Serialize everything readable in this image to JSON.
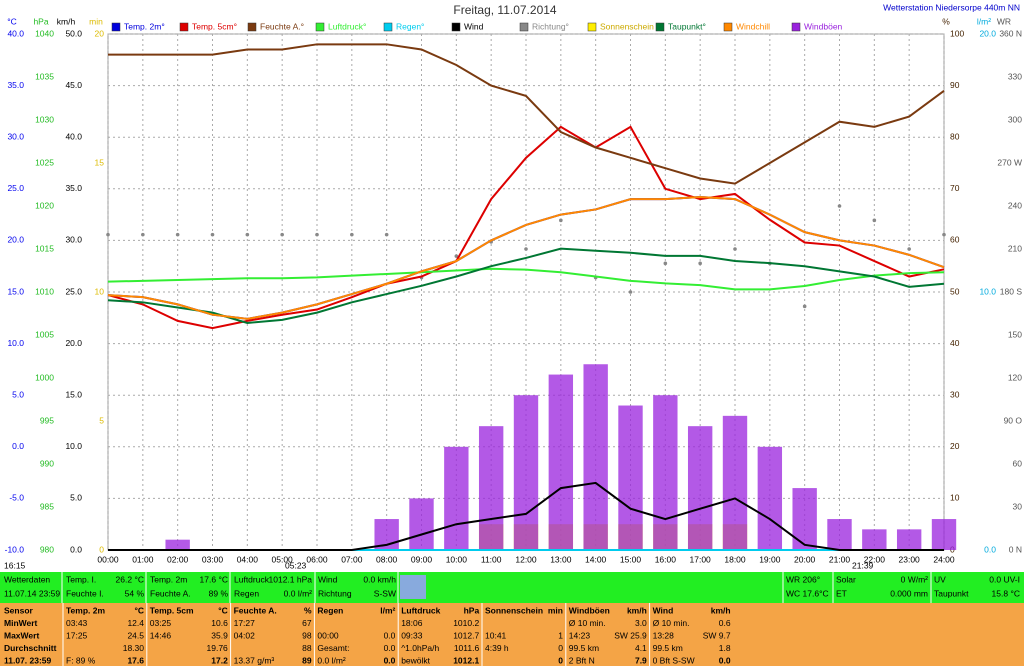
{
  "chart_data": {
    "type": "line",
    "title": "Freitag, 11.07.2014",
    "station": "Wetterstation Niedersorpe 440m NN",
    "markers": [
      "16:15",
      "05:23",
      "21:39"
    ],
    "xlim": [
      0,
      24
    ],
    "xticks": [
      {
        "value": 0,
        "label": "00:00"
      },
      {
        "value": 1,
        "label": "01:00"
      },
      {
        "value": 2,
        "label": "02:00"
      },
      {
        "value": 3,
        "label": "03:00"
      },
      {
        "value": 4,
        "label": "04:00"
      },
      {
        "value": 5,
        "label": "05:00"
      },
      {
        "value": 6,
        "label": "06:00"
      },
      {
        "value": 7,
        "label": "07:00"
      },
      {
        "value": 8,
        "label": "08:00"
      },
      {
        "value": 9,
        "label": "09:00"
      },
      {
        "value": 10,
        "label": "10:00"
      },
      {
        "value": 11,
        "label": "11:00"
      },
      {
        "value": 12,
        "label": "12:00"
      },
      {
        "value": 13,
        "label": "13:00"
      },
      {
        "value": 14,
        "label": "14:00"
      },
      {
        "value": 15,
        "label": "15:00"
      },
      {
        "value": 16,
        "label": "16:00"
      },
      {
        "value": 17,
        "label": "17:00"
      },
      {
        "value": 18,
        "label": "18:00"
      },
      {
        "value": 19,
        "label": "19:00"
      },
      {
        "value": 20,
        "label": "20:00"
      },
      {
        "value": 21,
        "label": "21:00"
      },
      {
        "value": 22,
        "label": "22:00"
      },
      {
        "value": 23,
        "label": "23:00"
      },
      {
        "value": 24,
        "label": "24:00"
      }
    ],
    "grid": true,
    "axes": [
      {
        "label": "°C",
        "color": "#0000ee",
        "lim": [
          -10,
          40
        ],
        "ticks": [
          {
            "value": -10,
            "label": "-10.0"
          },
          {
            "value": -5,
            "label": "-5.0"
          },
          {
            "value": 0,
            "label": "0.0"
          },
          {
            "value": 5,
            "label": "5.0"
          },
          {
            "value": 10,
            "label": "10.0"
          },
          {
            "value": 15,
            "label": "15.0"
          },
          {
            "value": 20,
            "label": "20.0"
          },
          {
            "value": 25,
            "label": "25.0"
          },
          {
            "value": 30,
            "label": "30.0"
          },
          {
            "value": 35,
            "label": "35.0"
          },
          {
            "value": 40,
            "label": "40.0"
          }
        ]
      },
      {
        "label": "hPa",
        "color": "#22bb22",
        "lim": [
          980,
          1040
        ],
        "ticks": [
          980,
          985,
          990,
          995,
          1000,
          1005,
          1010,
          1015,
          1020,
          1025,
          1030,
          1035,
          1040
        ]
      },
      {
        "label": "km/h",
        "color": "#000000",
        "lim": [
          0,
          50
        ],
        "ticks": [
          {
            "value": 0,
            "label": "0.0"
          },
          {
            "value": 5,
            "label": "5.0"
          },
          {
            "value": 10,
            "label": "10.0"
          },
          {
            "value": 15,
            "label": "15.0"
          },
          {
            "value": 20,
            "label": "20.0"
          },
          {
            "value": 25,
            "label": "25.0"
          },
          {
            "value": 30,
            "label": "30.0"
          },
          {
            "value": 35,
            "label": "35.0"
          },
          {
            "value": 40,
            "label": "40.0"
          },
          {
            "value": 45,
            "label": "45.0"
          },
          {
            "value": 50,
            "label": "50.0"
          }
        ]
      },
      {
        "label": "min",
        "color": "#ddbb00",
        "lim": [
          0,
          20
        ],
        "ticks": [
          0,
          5,
          10,
          15,
          20
        ]
      },
      {
        "label": "%",
        "color": "#442200",
        "lim": [
          0,
          100
        ],
        "ticks": [
          0,
          10,
          20,
          30,
          40,
          50,
          60,
          70,
          80,
          90,
          100
        ]
      },
      {
        "label": "l/m²",
        "color": "#00aadd",
        "lim": [
          0,
          20
        ],
        "ticks": [
          {
            "value": 0,
            "label": "0.0"
          },
          {
            "value": 10,
            "label": "10.0"
          },
          {
            "value": 20,
            "label": "20.0"
          }
        ]
      },
      {
        "label": "WR",
        "color": "#555555",
        "lim": [
          0,
          360
        ],
        "ticks": [
          {
            "value": 0,
            "label": "0 N"
          },
          30,
          60,
          {
            "value": 90,
            "label": "90 O"
          },
          120,
          150,
          {
            "value": 180,
            "label": "180 S"
          },
          210,
          240,
          {
            "value": 270,
            "label": "270 W"
          },
          300,
          330,
          {
            "value": 360,
            "label": "360 N"
          }
        ]
      }
    ],
    "x": [
      0,
      1,
      2,
      3,
      4,
      5,
      6,
      7,
      8,
      9,
      10,
      11,
      12,
      13,
      14,
      15,
      16,
      17,
      18,
      19,
      20,
      21,
      22,
      23,
      24
    ],
    "series": [
      {
        "name": "Temp. 2m°",
        "color": "#0000dd",
        "axis": 0,
        "style": "line",
        "values": [
          14.7,
          14.5,
          13.8,
          12.8,
          12.4,
          13,
          13.8,
          14.8,
          15.8,
          17,
          18,
          20,
          21.5,
          22.5,
          23,
          24,
          24,
          24.2,
          24,
          22.5,
          20.8,
          20,
          19.5,
          18.6,
          17.4
        ]
      },
      {
        "name": "Temp. 5cm°",
        "color": "#dd0000",
        "axis": 0,
        "style": "line",
        "values": [
          14.7,
          13.8,
          12.2,
          11.5,
          12.2,
          12.8,
          13.3,
          14.5,
          15.8,
          16.5,
          18,
          24,
          28,
          31,
          29,
          31,
          25,
          24,
          24.5,
          22,
          19.8,
          19.5,
          18,
          16.5,
          17.2
        ]
      },
      {
        "name": "Feuchte A.°",
        "color": "#7a3a10",
        "axis": 4,
        "style": "line",
        "values": [
          96,
          96,
          96,
          96,
          97,
          97,
          98,
          98,
          98,
          97,
          94,
          90,
          88,
          81,
          78,
          76,
          74,
          72,
          71,
          75,
          79,
          83,
          82,
          84,
          89
        ]
      },
      {
        "name": "Luftdruck°",
        "color": "#33ee33",
        "axis": 1,
        "style": "line",
        "values": [
          1011.2,
          1011.3,
          1011.4,
          1011.5,
          1011.6,
          1011.6,
          1011.7,
          1011.9,
          1012.1,
          1012.3,
          1012.5,
          1012.7,
          1012.6,
          1012.3,
          1011.8,
          1011.3,
          1011.0,
          1010.8,
          1010.3,
          1010.3,
          1010.7,
          1011.4,
          1011.9,
          1012.2,
          1012.3
        ]
      },
      {
        "name": "Regen°",
        "color": "#00ccee",
        "axis": 5,
        "style": "line",
        "values": [
          0,
          0,
          0,
          0,
          0,
          0,
          0,
          0,
          0,
          0,
          0,
          0,
          0,
          0,
          0,
          0,
          0,
          0,
          0,
          0,
          0,
          0,
          0,
          0,
          0
        ]
      },
      {
        "name": "Wind",
        "color": "#000000",
        "axis": 2,
        "style": "line",
        "values": [
          0,
          0,
          0,
          0,
          0,
          0,
          0,
          0,
          0.5,
          1.5,
          2.5,
          3,
          3.5,
          6,
          6.5,
          4,
          3,
          4,
          5,
          3,
          0.5,
          0,
          0,
          0,
          0
        ]
      },
      {
        "name": "Richtung°",
        "color": "#888888",
        "axis": 6,
        "style": "dots",
        "values": [
          220,
          220,
          220,
          220,
          220,
          220,
          220,
          220,
          220,
          190,
          205,
          215,
          210,
          230,
          190,
          180,
          200,
          200,
          210,
          200,
          170,
          240,
          230,
          210,
          220
        ]
      },
      {
        "name": "Sonnenschein",
        "color": "#ffee00",
        "axis": 3,
        "style": "bars",
        "values": [
          0,
          0,
          0,
          0,
          0,
          0,
          0,
          0,
          0,
          0,
          0,
          1,
          1,
          1,
          1,
          1,
          1,
          1,
          1,
          0,
          0,
          0,
          0,
          0,
          0
        ]
      },
      {
        "name": "Taupunkt°",
        "color": "#007733",
        "axis": 0,
        "style": "line",
        "values": [
          14.2,
          14,
          13.5,
          13,
          12,
          12.3,
          13,
          14,
          14.8,
          15.6,
          16.5,
          17.5,
          18.3,
          19.2,
          19,
          18.8,
          18.5,
          18.5,
          18,
          17.8,
          17.5,
          17,
          16.5,
          15.5,
          15.8
        ]
      },
      {
        "name": "Windchill",
        "color": "#ff8800",
        "axis": 0,
        "style": "line",
        "values": [
          14.7,
          14.5,
          13.8,
          12.8,
          12.4,
          13,
          13.8,
          14.8,
          15.8,
          17,
          18,
          20,
          21.5,
          22.5,
          23,
          24,
          24,
          24.2,
          24,
          22.5,
          20.8,
          20,
          19.5,
          18.6,
          17.4
        ]
      },
      {
        "name": "Windböen",
        "color": "#9922dd",
        "axis": 2,
        "style": "bars",
        "values": [
          0,
          0,
          1,
          0,
          0,
          0,
          0,
          0,
          3,
          5,
          10,
          12,
          15,
          17,
          18,
          14,
          15,
          12,
          13,
          10,
          6,
          3,
          2,
          2,
          3
        ]
      }
    ]
  },
  "status": {
    "title": "Wetterdaten",
    "time": "11.07.14 23:59",
    "cells": [
      [
        {
          "label": "Temp. I.",
          "value": "26.2 °C"
        },
        {
          "label": "Feuchte I.",
          "value": "54 %"
        }
      ],
      [
        {
          "label": "Temp. 2m",
          "value": "17.6 °C"
        },
        {
          "label": "Feuchte A.",
          "value": "89 %"
        }
      ],
      [
        {
          "label": "Luftdruck",
          "value": "1012.1 hPa"
        },
        {
          "label": "Regen",
          "value": "0.0 l/m²"
        }
      ],
      [
        {
          "label": "Wind",
          "value": "0.0 km/h"
        },
        {
          "label": "Richtung",
          "value": "S-SW"
        }
      ]
    ],
    "right": [
      [
        {
          "label": "WR 206°",
          "value": null
        },
        {
          "label": "WC 17.6°C",
          "value": null
        }
      ],
      [
        {
          "label": "Solar",
          "value": "0 W/m²"
        },
        {
          "label": "ET",
          "value": "0.000 mm"
        }
      ],
      [
        {
          "label": "UV",
          "value": "0.0 UV-I"
        },
        {
          "label": "Taupunkt",
          "value": "15.8 °C"
        }
      ]
    ]
  },
  "table": {
    "corner": "Sensor",
    "headers": [
      [
        "Temp. 2m",
        "°C"
      ],
      [
        "Temp. 5cm",
        "°C"
      ],
      [
        "Feuchte A.",
        "%"
      ],
      [
        "Regen",
        "l/m²"
      ],
      [
        "Luftdruck",
        "hPa"
      ],
      [
        "Sonnenschein",
        "min"
      ],
      [
        "Windböen",
        "km/h"
      ],
      [
        "Wind",
        "km/h"
      ]
    ],
    "rows": [
      {
        "label": "MinWert",
        "cells": [
          [
            "03:43",
            "12.4"
          ],
          [
            "03:25",
            "10.6"
          ],
          [
            "17:27",
            "67"
          ],
          [
            null,
            null
          ],
          [
            "18:06",
            "1010.2"
          ],
          [
            null,
            null
          ],
          [
            "Ø 10 min.",
            "3.0"
          ],
          [
            "Ø 10 min.",
            "0.6"
          ]
        ]
      },
      {
        "label": "MaxWert",
        "cells": [
          [
            "17:25",
            "24.5"
          ],
          [
            "14:46",
            "35.9"
          ],
          [
            "04:02",
            "98"
          ],
          [
            "00:00",
            "0.0"
          ],
          [
            "09:33",
            "1012.7"
          ],
          [
            "10:41",
            "1"
          ],
          [
            "14:23",
            "SW 25.9"
          ],
          [
            "13:28",
            "SW 9.7"
          ]
        ]
      },
      {
        "label": "Durchschnitt",
        "cells": [
          [
            null,
            "18.30"
          ],
          [
            null,
            "19.76"
          ],
          [
            null,
            "88"
          ],
          [
            "Gesamt:",
            "0.0"
          ],
          [
            "^1.0hPa/h",
            "1011.6"
          ],
          [
            "4:39 h",
            "0"
          ],
          [
            "99.5 km",
            "4.1"
          ],
          [
            "99.5 km",
            "1.8"
          ]
        ]
      },
      {
        "label": "11.07. 23:59",
        "cells": [
          [
            "F: 89 %",
            "17.6"
          ],
          [
            null,
            "17.2"
          ],
          [
            "13.37 g/m³",
            "89"
          ],
          [
            "0.0 l/m²",
            "0.0"
          ],
          [
            "bewölkt",
            "1012.1"
          ],
          [
            null,
            "0"
          ],
          [
            "2 Bft N",
            "7.9"
          ],
          [
            "0 Bft S-SW",
            "0.0"
          ]
        ]
      }
    ]
  }
}
